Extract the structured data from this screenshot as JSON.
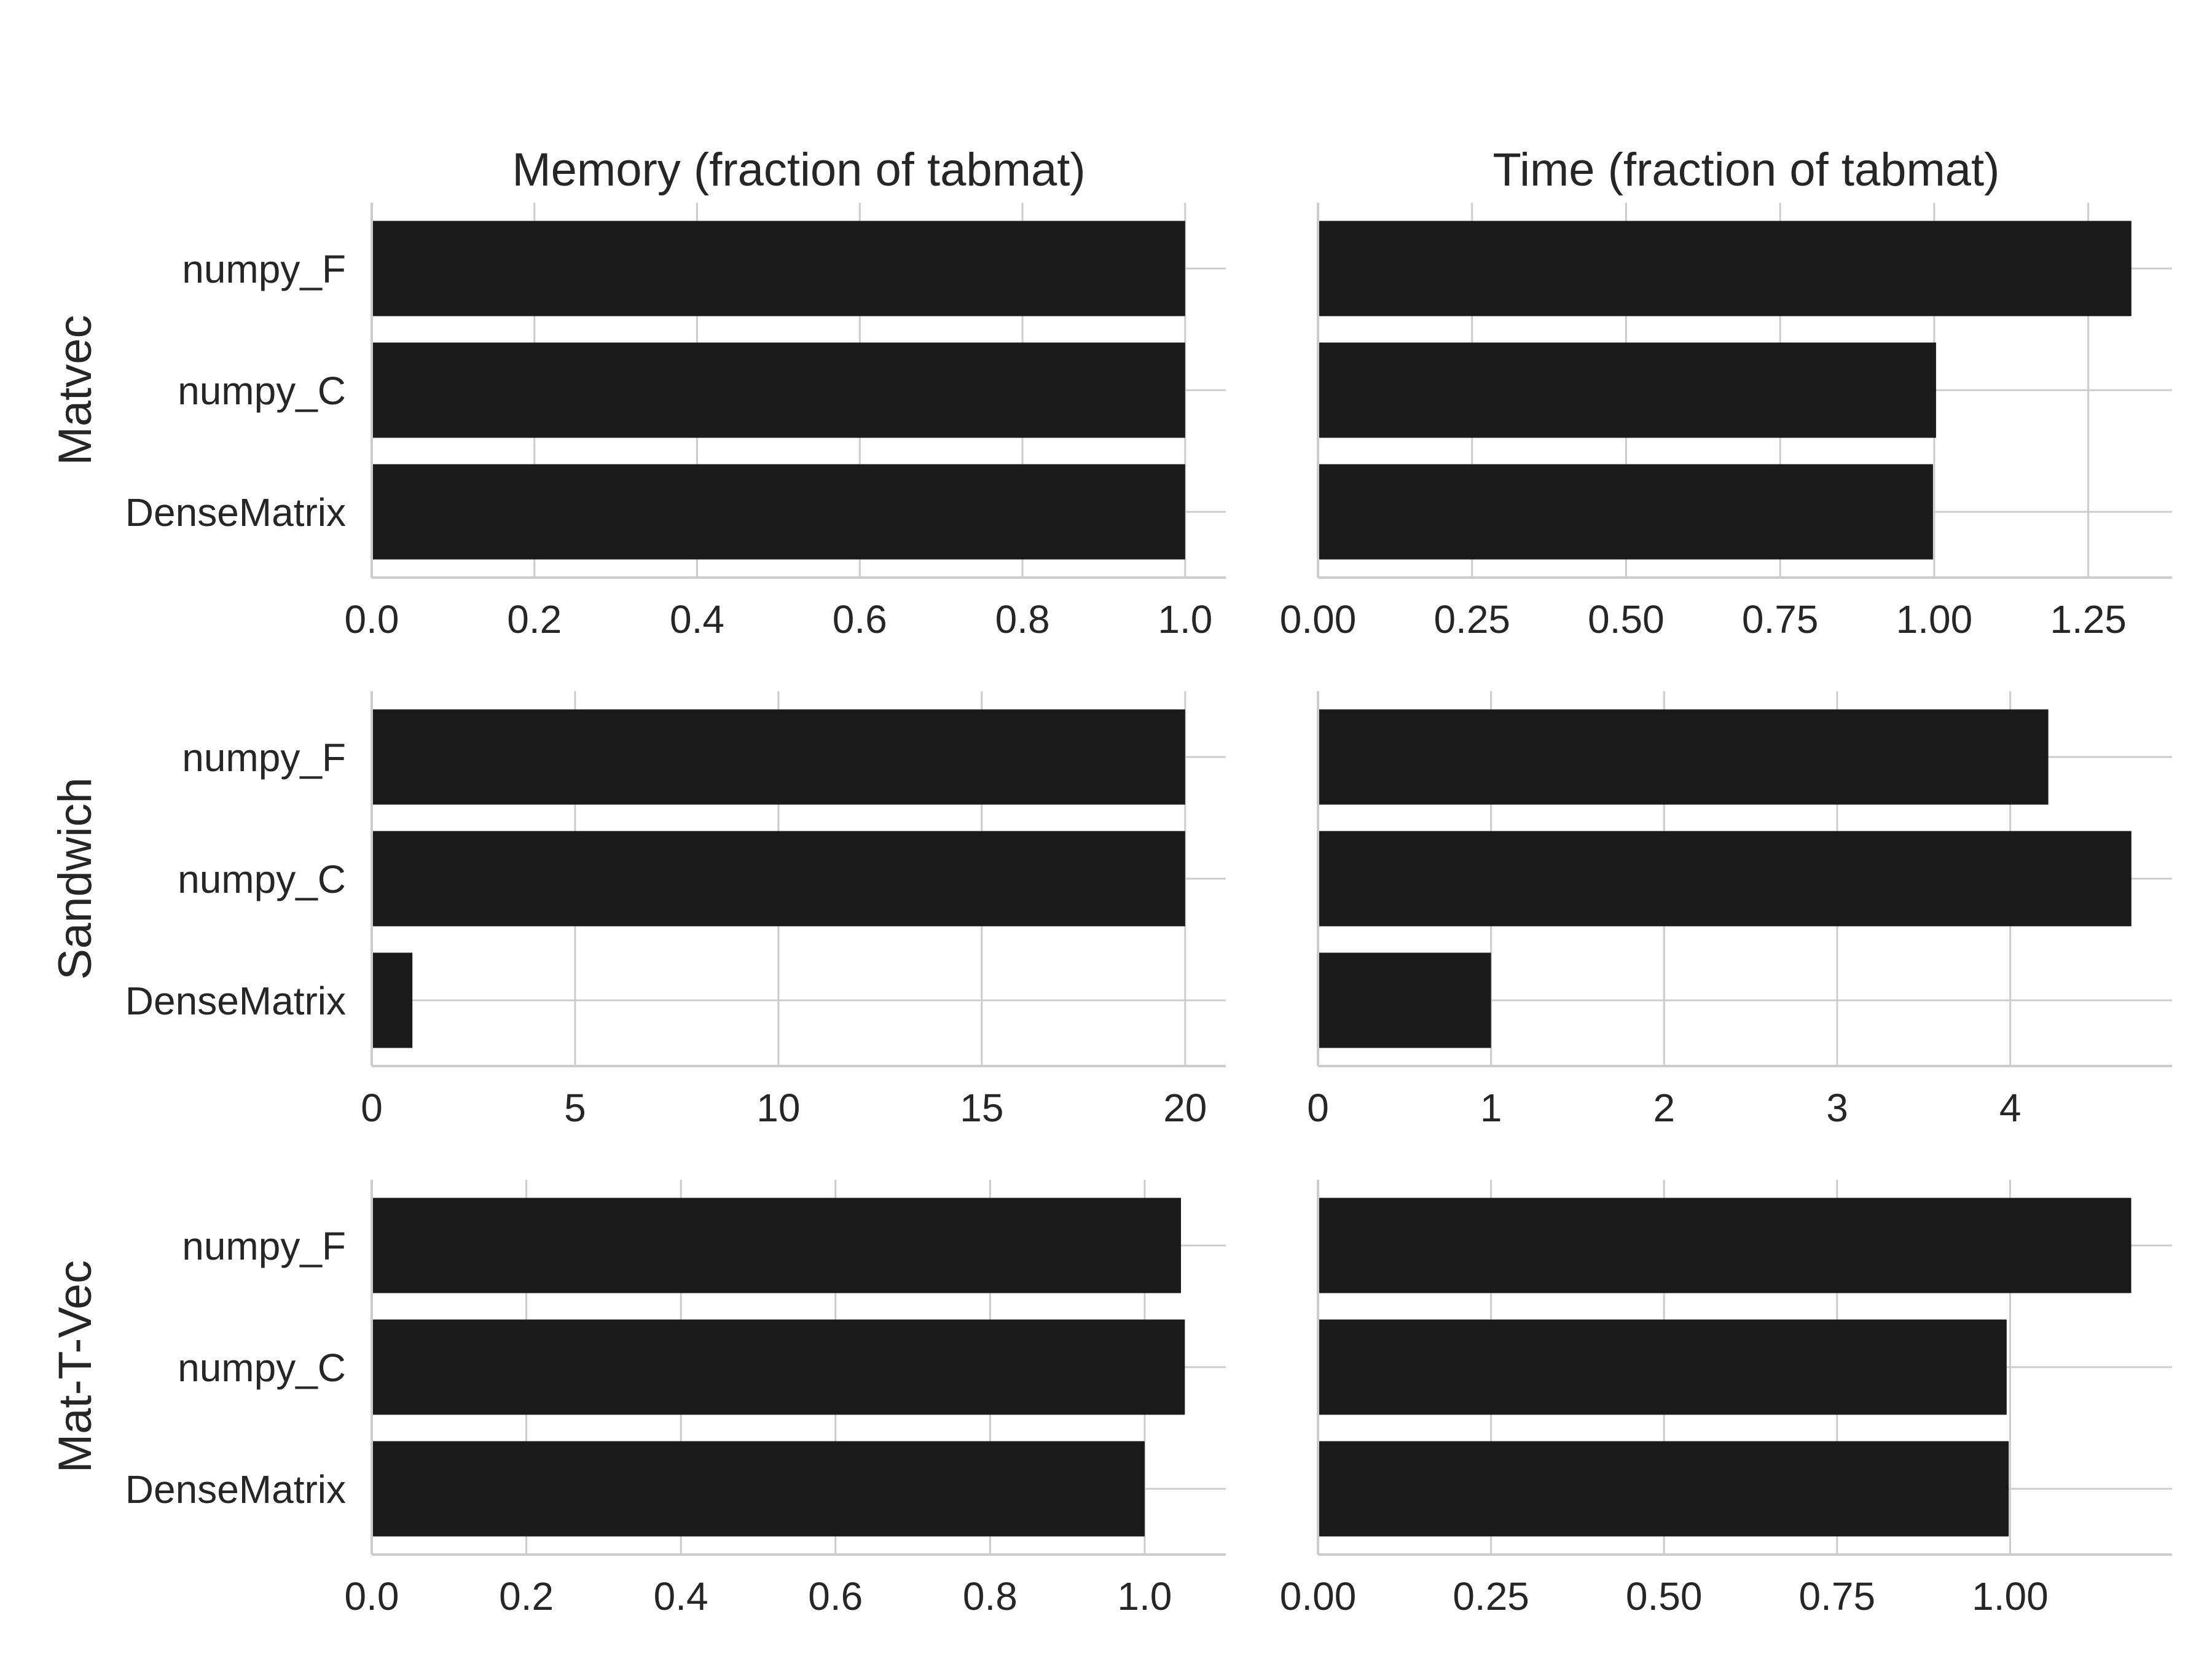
{
  "chart_data": {
    "type": "bar",
    "orientation": "horizontal",
    "grid": true,
    "column_titles": [
      "Memory (fraction of tabmat)",
      "Time (fraction of tabmat)"
    ],
    "row_labels": [
      "Matvec",
      "Sandwich",
      "Mat-T-Vec"
    ],
    "categories": [
      "numpy_F",
      "numpy_C",
      "DenseMatrix"
    ],
    "bar_color": "#1a1a1a",
    "grid_color": "#cccccc",
    "panels": [
      {
        "row": "Matvec",
        "column": "Memory (fraction of tabmat)",
        "categories": [
          "numpy_F",
          "numpy_C",
          "DenseMatrix"
        ],
        "values": [
          1.0,
          1.0,
          1.0
        ],
        "xlim": [
          0,
          1.05
        ],
        "xticks": [
          0.0,
          0.2,
          0.4,
          0.6,
          0.8,
          1.0
        ],
        "xtick_labels": [
          "0.0",
          "0.2",
          "0.4",
          "0.6",
          "0.8",
          "1.0"
        ]
      },
      {
        "row": "Matvec",
        "column": "Time (fraction of tabmat)",
        "categories": [
          "numpy_F",
          "numpy_C",
          "DenseMatrix"
        ],
        "values": [
          1.32,
          1.003,
          0.998
        ],
        "xlim": [
          0,
          1.386
        ],
        "xticks": [
          0.0,
          0.25,
          0.5,
          0.75,
          1.0,
          1.25
        ],
        "xtick_labels": [
          "0.00",
          "0.25",
          "0.50",
          "0.75",
          "1.00",
          "1.25"
        ]
      },
      {
        "row": "Sandwich",
        "column": "Memory (fraction of tabmat)",
        "categories": [
          "numpy_F",
          "numpy_C",
          "DenseMatrix"
        ],
        "values": [
          20.0,
          20.0,
          1.0
        ],
        "xlim": [
          0,
          21.0
        ],
        "xticks": [
          0,
          5,
          10,
          15,
          20
        ],
        "xtick_labels": [
          "0",
          "5",
          "10",
          "15",
          "20"
        ]
      },
      {
        "row": "Sandwich",
        "column": "Time (fraction of tabmat)",
        "categories": [
          "numpy_F",
          "numpy_C",
          "DenseMatrix"
        ],
        "values": [
          4.22,
          4.7,
          1.0
        ],
        "xlim": [
          0,
          4.935
        ],
        "xticks": [
          0,
          1,
          2,
          3,
          4
        ],
        "xtick_labels": [
          "0",
          "1",
          "2",
          "3",
          "4"
        ]
      },
      {
        "row": "Mat-T-Vec",
        "column": "Memory (fraction of tabmat)",
        "categories": [
          "numpy_F",
          "numpy_C",
          "DenseMatrix"
        ],
        "values": [
          1.047,
          1.052,
          1.0
        ],
        "xlim": [
          0,
          1.105
        ],
        "xticks": [
          0.0,
          0.2,
          0.4,
          0.6,
          0.8,
          1.0
        ],
        "xtick_labels": [
          "0.0",
          "0.2",
          "0.4",
          "0.6",
          "0.8",
          "1.0"
        ]
      },
      {
        "row": "Mat-T-Vec",
        "column": "Time (fraction of tabmat)",
        "categories": [
          "numpy_F",
          "numpy_C",
          "DenseMatrix"
        ],
        "values": [
          1.175,
          0.995,
          0.998
        ],
        "xlim": [
          0,
          1.234
        ],
        "xticks": [
          0.0,
          0.25,
          0.5,
          0.75,
          1.0
        ],
        "xtick_labels": [
          "0.00",
          "0.25",
          "0.50",
          "0.75",
          "1.00"
        ]
      }
    ]
  }
}
